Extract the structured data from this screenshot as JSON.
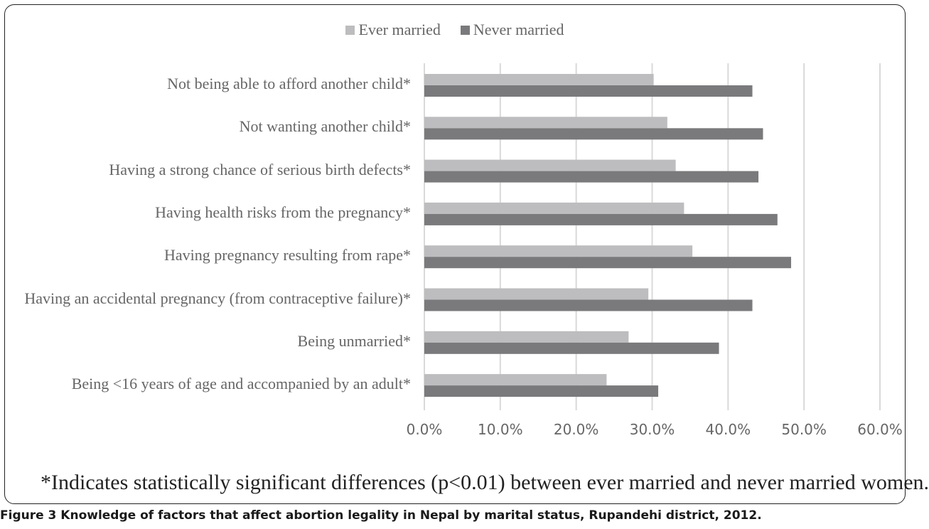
{
  "legend": {
    "ever_married": "Ever married",
    "never_married": "Never married"
  },
  "colors": {
    "ever_married": "#bdbdbf",
    "never_married": "#7a7a7c",
    "grid": "#d9d9d9"
  },
  "note": "*Indicates statistically significant differences (p<0.01) between ever married and never married women.",
  "caption": "Figure 3 Knowledge of factors that affect abortion legality in Nepal by marital status, Rupandehi district, 2012.",
  "chart_data": {
    "type": "bar",
    "orientation": "horizontal",
    "categories": [
      "Not being able to afford another child*",
      "Not wanting another child*",
      "Having a strong chance of serious birth defects*",
      "Having health risks from the pregnancy*",
      "Having pregnancy resulting from rape*",
      "Having an accidental pregnancy (from contraceptive failure)*",
      "Being unmarried*",
      "Being <16 years of age and accompanied by an adult*"
    ],
    "series": [
      {
        "name": "Ever married",
        "values": [
          30.2,
          32.0,
          33.1,
          34.2,
          35.3,
          29.5,
          26.9,
          24.0
        ]
      },
      {
        "name": "Never married",
        "values": [
          43.2,
          44.6,
          44.0,
          46.5,
          48.3,
          43.2,
          38.8,
          30.8
        ]
      }
    ],
    "xlim": [
      0,
      60
    ],
    "ticks": [
      "0.0%",
      "10.0%",
      "20.0%",
      "30.0%",
      "40.0%",
      "50.0%",
      "60.0%"
    ],
    "grid": true,
    "legend_position": "top"
  }
}
